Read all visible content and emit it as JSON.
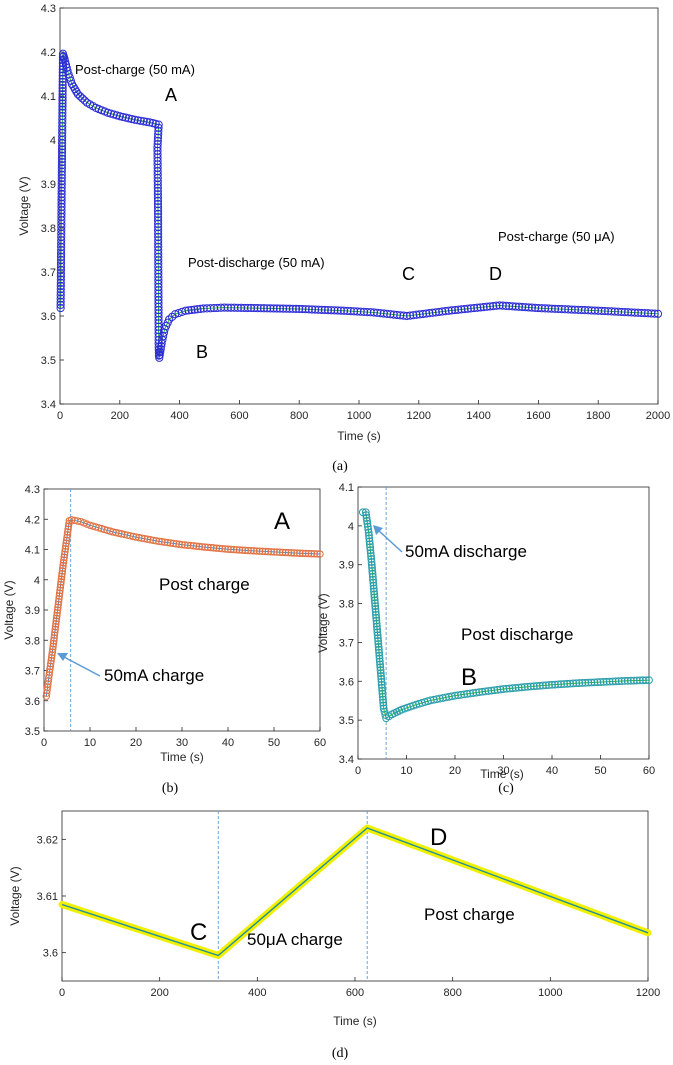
{
  "chart_data": [
    {
      "panel": "a",
      "type": "scatter",
      "caption": "(a)",
      "xlabel": "Time (s)",
      "ylabel": "Voltage (V)",
      "xlim": [
        0,
        2000
      ],
      "ylim": [
        3.4,
        4.3
      ],
      "xticks": [
        0,
        200,
        400,
        600,
        800,
        1000,
        1200,
        1400,
        1600,
        1800,
        2000
      ],
      "yticks": [
        3.4,
        3.5,
        3.6,
        3.7,
        3.8,
        3.9,
        4.0,
        4.1,
        4.2,
        4.3
      ],
      "yticklabels": [
        "3.4",
        "3.5",
        "3.6",
        "3.7",
        "3.8",
        "3.9",
        "4",
        "4.1",
        "4.2",
        "4.3"
      ],
      "grid": false,
      "colors": {
        "markers": "#2b2bd6",
        "line": "#22bb22"
      },
      "series": [
        {
          "points": [
            [
              2,
              3.618
            ],
            [
              3,
              3.697
            ],
            [
              4,
              3.772
            ],
            [
              5,
              3.848
            ],
            [
              6,
              3.921
            ],
            [
              7,
              3.993
            ],
            [
              8,
              4.062
            ],
            [
              9,
              4.132
            ],
            [
              10,
              4.196
            ],
            [
              15,
              4.185
            ],
            [
              25,
              4.157
            ],
            [
              40,
              4.127
            ],
            [
              60,
              4.104
            ],
            [
              90,
              4.085
            ],
            [
              120,
              4.073
            ],
            [
              160,
              4.062
            ],
            [
              200,
              4.054
            ],
            [
              250,
              4.046
            ],
            [
              300,
              4.04
            ],
            [
              330,
              4.035
            ],
            [
              326,
              3.983
            ],
            [
              327,
              3.906
            ],
            [
              328,
              3.832
            ],
            [
              328.5,
              3.757
            ],
            [
              329,
              3.681
            ],
            [
              329.5,
              3.606
            ],
            [
              330,
              3.53
            ],
            [
              331,
              3.51
            ],
            [
              332,
              3.505
            ],
            [
              340,
              3.538
            ],
            [
              350,
              3.57
            ],
            [
              365,
              3.592
            ],
            [
              385,
              3.604
            ],
            [
              420,
              3.612
            ],
            [
              480,
              3.617
            ],
            [
              550,
              3.619
            ],
            [
              650,
              3.618
            ],
            [
              800,
              3.616
            ],
            [
              950,
              3.612
            ],
            [
              1050,
              3.608
            ],
            [
              1160,
              3.6
            ],
            [
              1300,
              3.612
            ],
            [
              1470,
              3.624
            ],
            [
              1600,
              3.618
            ],
            [
              1800,
              3.612
            ],
            [
              2000,
              3.605
            ]
          ]
        }
      ],
      "annotations": [
        "Post-charge (50 mA)",
        "A",
        "Post-discharge (50 mA)",
        "B",
        "C",
        "D",
        "Post-charge (50 μA)"
      ]
    },
    {
      "panel": "b",
      "type": "scatter",
      "caption": "(b)",
      "xlabel": "Time (s)",
      "ylabel": "Voltage (V)",
      "xlim": [
        0,
        60
      ],
      "ylim": [
        3.5,
        4.3
      ],
      "xticks": [
        0,
        10,
        20,
        30,
        40,
        50,
        60
      ],
      "yticks": [
        3.5,
        3.6,
        3.7,
        3.8,
        3.9,
        4.0,
        4.1,
        4.2,
        4.3
      ],
      "yticklabels": [
        "3.5",
        "3.6",
        "3.7",
        "3.8",
        "3.9",
        "4",
        "4.1",
        "4.2",
        "4.3"
      ],
      "vline_x": 5.8,
      "colors": {
        "markers": "#e07040",
        "line": "#3a8fd0"
      },
      "series": [
        {
          "points": [
            [
              0.5,
              3.615
            ],
            [
              1.2,
              3.695
            ],
            [
              1.9,
              3.77
            ],
            [
              2.5,
              3.845
            ],
            [
              3.1,
              3.918
            ],
            [
              3.7,
              3.993
            ],
            [
              4.3,
              4.065
            ],
            [
              4.9,
              4.13
            ],
            [
              5.5,
              4.195
            ],
            [
              6,
              4.198
            ],
            [
              8,
              4.192
            ],
            [
              10,
              4.18
            ],
            [
              15,
              4.158
            ],
            [
              20,
              4.141
            ],
            [
              25,
              4.127
            ],
            [
              30,
              4.116
            ],
            [
              35,
              4.108
            ],
            [
              40,
              4.101
            ],
            [
              45,
              4.096
            ],
            [
              50,
              4.092
            ],
            [
              55,
              4.088
            ],
            [
              60,
              4.085
            ]
          ]
        }
      ],
      "annotations": [
        "A",
        "Post charge",
        "50mA charge"
      ]
    },
    {
      "panel": "c",
      "type": "scatter",
      "caption": "(c)",
      "xlabel": "Time (s)",
      "ylabel": "Voltage (V)",
      "xlim": [
        0,
        60
      ],
      "ylim": [
        3.4,
        4.1
      ],
      "xticks": [
        0,
        10,
        20,
        30,
        40,
        50,
        60
      ],
      "yticks": [
        3.4,
        3.5,
        3.6,
        3.7,
        3.8,
        3.9,
        4.0,
        4.1
      ],
      "yticklabels": [
        "3.4",
        "3.5",
        "3.6",
        "3.7",
        "3.8",
        "3.9",
        "4",
        "4.1"
      ],
      "vline_x": 5.8,
      "colors": {
        "markers": "#2a9dab",
        "line": "#22bb22"
      },
      "series": [
        {
          "points": [
            [
              1.0,
              4.035
            ],
            [
              1.6,
              4.035
            ],
            [
              2.2,
              3.983
            ],
            [
              2.8,
              3.907
            ],
            [
              3.3,
              3.831
            ],
            [
              3.8,
              3.756
            ],
            [
              4.3,
              3.681
            ],
            [
              4.8,
              3.606
            ],
            [
              5.3,
              3.53
            ],
            [
              5.8,
              3.505
            ],
            [
              7,
              3.515
            ],
            [
              9,
              3.527
            ],
            [
              12,
              3.54
            ],
            [
              15,
              3.551
            ],
            [
              20,
              3.563
            ],
            [
              25,
              3.572
            ],
            [
              30,
              3.58
            ],
            [
              35,
              3.586
            ],
            [
              40,
              3.591
            ],
            [
              45,
              3.595
            ],
            [
              50,
              3.598
            ],
            [
              55,
              3.601
            ],
            [
              60,
              3.603
            ]
          ]
        }
      ],
      "annotations": [
        "50mA discharge",
        "Post discharge",
        "B"
      ]
    },
    {
      "panel": "d",
      "type": "line",
      "caption": "(d)",
      "xlabel": "Time (s)",
      "ylabel": "Voltage (V)",
      "xlim": [
        0,
        1200
      ],
      "ylim": [
        3.595,
        3.625
      ],
      "xticks": [
        0,
        200,
        400,
        600,
        800,
        1000,
        1200
      ],
      "yticks": [
        3.6,
        3.61,
        3.62
      ],
      "yticklabels": [
        "3.6",
        "3.61",
        "3.62"
      ],
      "vlines_x": [
        320,
        625
      ],
      "colors": {
        "highlight": "#f0f000",
        "line": "#1f8fa0"
      },
      "series": [
        {
          "points": [
            [
              0,
              3.6085
            ],
            [
              320,
              3.5995
            ],
            [
              625,
              3.622
            ],
            [
              1200,
              3.6035
            ]
          ]
        }
      ],
      "annotations": [
        "C",
        "50μA charge",
        "D",
        "Post charge"
      ]
    }
  ]
}
